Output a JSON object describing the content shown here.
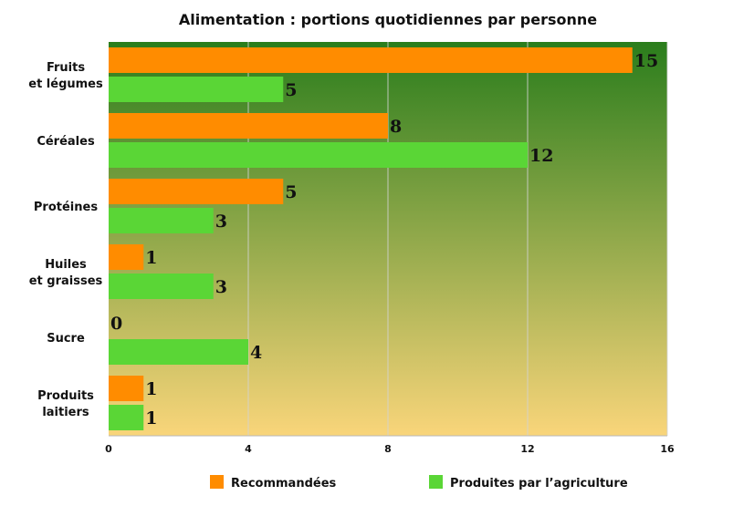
{
  "chart_data": {
    "type": "bar",
    "orientation": "horizontal",
    "title": "Alimentation : portions quotidiennes par personne",
    "categories": [
      [
        "Fruits",
        "et légumes"
      ],
      [
        "Céréales"
      ],
      [
        "Protéines"
      ],
      [
        "Huiles",
        "et graisses"
      ],
      [
        "Sucre"
      ],
      [
        "Produits",
        "laitiers"
      ]
    ],
    "series": [
      {
        "name": "Recommandées",
        "color": "#ff8c00",
        "values": [
          15,
          8,
          5,
          1,
          0,
          1
        ]
      },
      {
        "name": "Produites par l’agriculture",
        "color": "#5ad636",
        "values": [
          5,
          12,
          3,
          3,
          4,
          1
        ]
      }
    ],
    "xlim": [
      0,
      16
    ],
    "xticks": [
      0,
      4,
      8,
      12,
      16
    ],
    "grid": "vertical",
    "legend": "bottom",
    "background_gradient": [
      "#2a7d1c",
      "#f9d57a"
    ]
  }
}
